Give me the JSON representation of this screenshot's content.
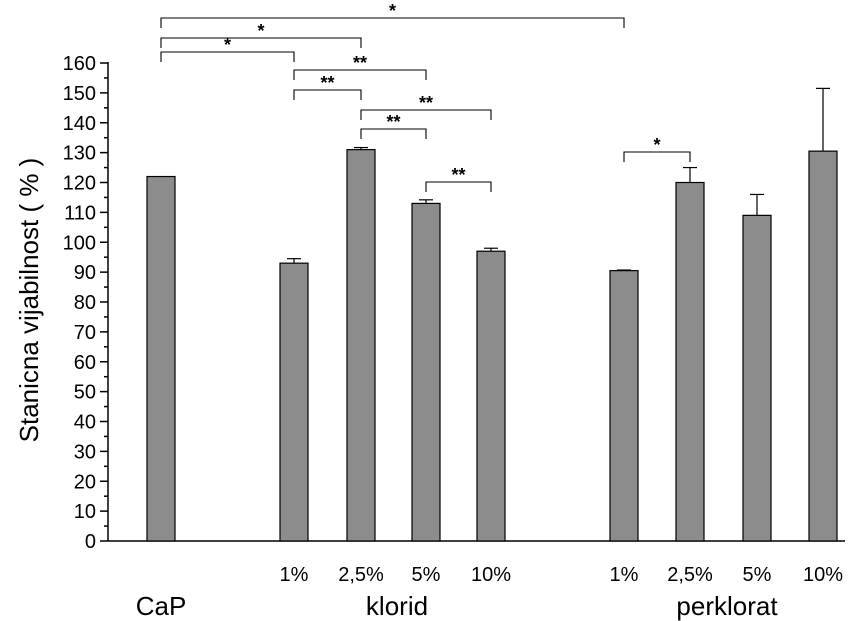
{
  "chart_data": {
    "type": "bar",
    "ylabel": "Stanicna vijabilnost ( % )",
    "ylim": [
      0,
      160
    ],
    "yticks": [
      0,
      10,
      20,
      30,
      40,
      50,
      60,
      70,
      80,
      90,
      100,
      110,
      120,
      130,
      140,
      150,
      160
    ],
    "grid": false,
    "groups": [
      "CaP",
      "klorid",
      "perklorat"
    ],
    "bars": [
      {
        "id": "cap",
        "group": "CaP",
        "label": "",
        "value": 122,
        "error": 0
      },
      {
        "id": "klorid-1",
        "group": "klorid",
        "label": "1%",
        "value": 93,
        "error": 1.5
      },
      {
        "id": "klorid-2-5",
        "group": "klorid",
        "label": "2,5%",
        "value": 131,
        "error": 0.7
      },
      {
        "id": "klorid-5",
        "group": "klorid",
        "label": "5%",
        "value": 113,
        "error": 1.2
      },
      {
        "id": "klorid-10",
        "group": "klorid",
        "label": "10%",
        "value": 97,
        "error": 1
      },
      {
        "id": "perklorat-1",
        "group": "perklorat",
        "label": "1%",
        "value": 90.5,
        "error": 0.2
      },
      {
        "id": "perklorat-2-5",
        "group": "perklorat",
        "label": "2,5%",
        "value": 120,
        "error": 5
      },
      {
        "id": "perklorat-5",
        "group": "perklorat",
        "label": "5%",
        "value": 109,
        "error": 7
      },
      {
        "id": "perklorat-10",
        "group": "perklorat",
        "label": "10%",
        "value": 130.5,
        "error": 21
      }
    ],
    "significance": [
      {
        "from": "cap",
        "to": "perklorat-1",
        "label": "*"
      },
      {
        "from": "cap",
        "to": "klorid-2-5",
        "label": "*"
      },
      {
        "from": "cap",
        "to": "klorid-1",
        "label": "*"
      },
      {
        "from": "klorid-1",
        "to": "klorid-5",
        "label": "**"
      },
      {
        "from": "klorid-1",
        "to": "klorid-2-5",
        "label": "**"
      },
      {
        "from": "klorid-2-5",
        "to": "klorid-10",
        "label": "**"
      },
      {
        "from": "klorid-2-5",
        "to": "klorid-5",
        "label": "**"
      },
      {
        "from": "klorid-5",
        "to": "klorid-10",
        "label": "**"
      },
      {
        "from": "perklorat-1",
        "to": "perklorat-2-5",
        "label": "*"
      }
    ]
  }
}
